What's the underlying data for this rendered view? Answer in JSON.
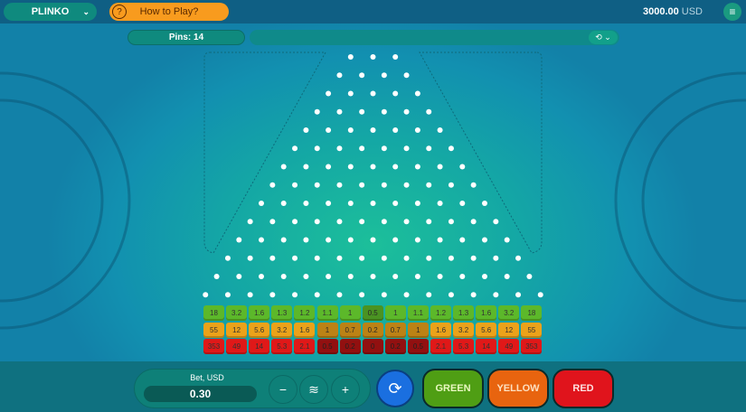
{
  "header": {
    "game": "PLINKO",
    "how_to_play": "How to Play?",
    "balance": "3000.00",
    "currency": "USD"
  },
  "controls": {
    "pins_label": "Pins: 14"
  },
  "board": {
    "pins": 14,
    "rows": [
      {
        "color": "green",
        "bg": "#5cb82a",
        "values": [
          "18",
          "3.2",
          "1.6",
          "1.3",
          "1.2",
          "1.1",
          "1",
          "0.5",
          "1",
          "1.1",
          "1.2",
          "1.3",
          "1.6",
          "3.2",
          "18"
        ]
      },
      {
        "color": "yellow",
        "bg": "#eba21a",
        "values": [
          "55",
          "12",
          "5.6",
          "3.2",
          "1.6",
          "1",
          "0.7",
          "0.2",
          "0.7",
          "1",
          "1.6",
          "3.2",
          "5.6",
          "12",
          "55"
        ]
      },
      {
        "color": "red",
        "bg": "#e01818",
        "values": [
          "353",
          "49",
          "14",
          "5.3",
          "2.1",
          "0.5",
          "0.2",
          "0",
          "0.2",
          "0.5",
          "2.1",
          "5.3",
          "14",
          "49",
          "353"
        ]
      }
    ]
  },
  "bet": {
    "label": "Bet, USD",
    "value": "0.30",
    "minus": "−",
    "plus": "+"
  },
  "buttons": {
    "green": "GREEN",
    "yellow": "YELLOW",
    "red": "RED"
  },
  "colors": {
    "green": "#4f9e14",
    "yellow": "#e8640f",
    "red": "#e0141c",
    "auto": "#1a6fe0"
  }
}
